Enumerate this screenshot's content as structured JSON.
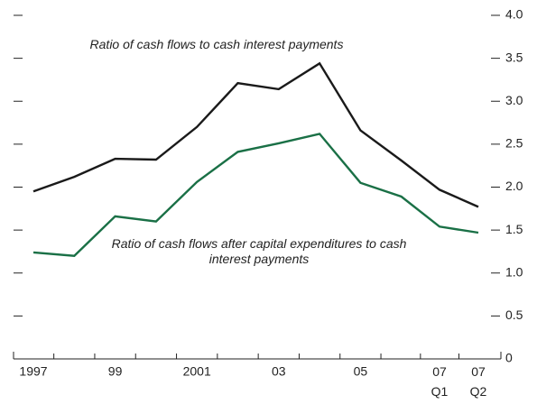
{
  "chart_data": {
    "type": "line",
    "categories": [
      "1997",
      null,
      "99",
      null,
      "2001",
      null,
      "03",
      null,
      "05",
      null,
      "07 Q1",
      "07 Q2"
    ],
    "series": [
      {
        "name": "Ratio of cash flows to cash interest payments",
        "color": "#1a1a1a",
        "values": [
          1.95,
          2.12,
          2.33,
          2.32,
          2.7,
          3.21,
          3.14,
          3.44,
          2.66,
          2.31,
          1.97,
          1.77
        ]
      },
      {
        "name": "Ratio of cash flows after capital expenditures to cash interest payments",
        "color": "#1a7046",
        "values": [
          1.24,
          1.2,
          1.66,
          1.6,
          2.06,
          2.41,
          2.51,
          2.62,
          2.05,
          1.89,
          1.54,
          1.47
        ]
      }
    ],
    "ylim": [
      0,
      4
    ],
    "yticks": [
      0,
      0.5,
      {
        "value": 1,
        "label": "1.0"
      },
      1.5,
      {
        "value": 2,
        "label": "2.0"
      },
      2.5,
      {
        "value": 3,
        "label": "3.0"
      },
      3.5,
      {
        "value": 4,
        "label": "4.0"
      }
    ]
  }
}
